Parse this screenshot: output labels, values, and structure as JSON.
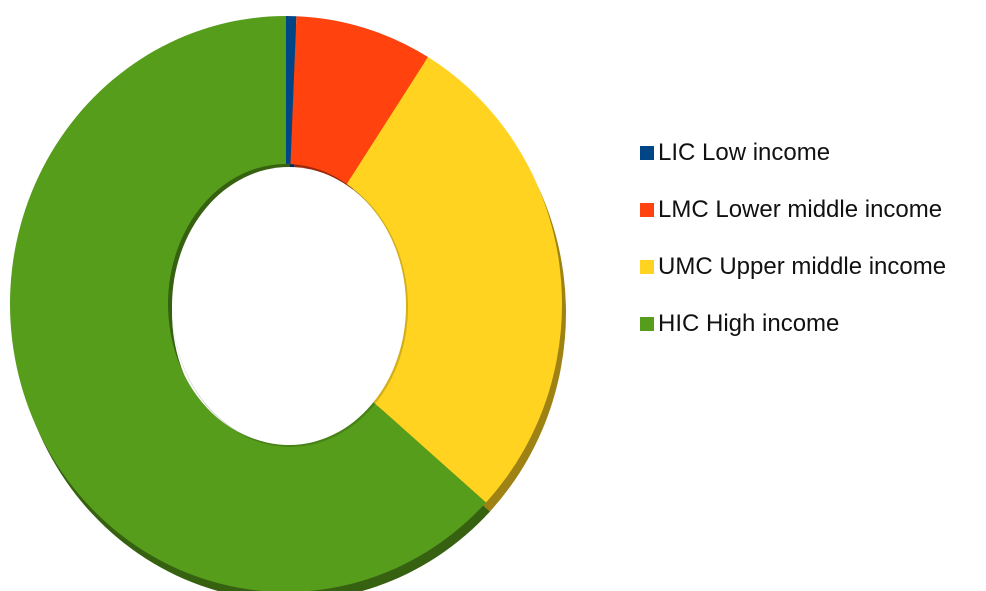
{
  "chart_data": {
    "type": "pie",
    "variant": "donut",
    "categories": [
      "LIC Low income",
      "LMC Lower middle income",
      "UMC Upper middle income",
      "HIC High income"
    ],
    "values": [
      0.6,
      8.0,
      28.5,
      62.9
    ],
    "colors": [
      "#004586",
      "#FF420E",
      "#FFD320",
      "#579D1C"
    ],
    "legend_position": "right",
    "title": "",
    "subtitle": ""
  }
}
